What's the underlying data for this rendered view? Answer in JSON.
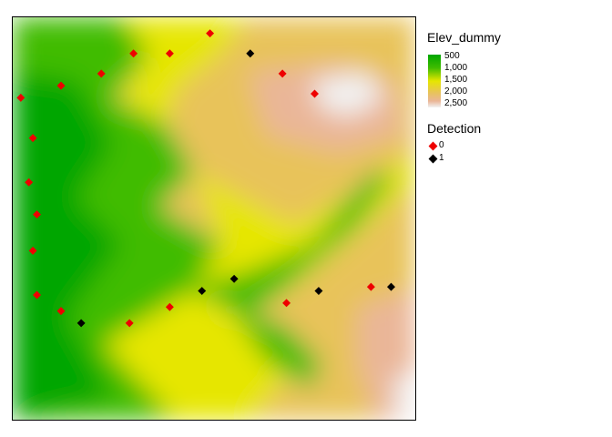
{
  "legend": {
    "elevation_title": "Elev_dummy",
    "elevation_ticks": [
      "500",
      "1,000",
      "1,500",
      "2,000",
      "2,500"
    ],
    "elevation_colors": [
      "#00a600",
      "#3fbc00",
      "#e6e600",
      "#e8c35a",
      "#eab698",
      "#f2f2f2"
    ],
    "detection_title": "Detection",
    "detection_items": [
      {
        "label": "0",
        "color": "#ee0000"
      },
      {
        "label": "1",
        "color": "#000000"
      }
    ]
  },
  "map": {
    "colors": {
      "low": "#00a600",
      "mid": "#e6e600",
      "high": "#f2f2f2"
    },
    "points": [
      {
        "lon": 0.49,
        "lat": 0.96,
        "detection": 0
      },
      {
        "lon": 0.59,
        "lat": 0.91,
        "detection": 1
      },
      {
        "lon": 0.3,
        "lat": 0.91,
        "detection": 0
      },
      {
        "lon": 0.39,
        "lat": 0.91,
        "detection": 0
      },
      {
        "lon": 0.22,
        "lat": 0.86,
        "detection": 0
      },
      {
        "lon": 0.67,
        "lat": 0.86,
        "detection": 0
      },
      {
        "lon": 0.12,
        "lat": 0.83,
        "detection": 0
      },
      {
        "lon": 0.75,
        "lat": 0.81,
        "detection": 0
      },
      {
        "lon": 0.02,
        "lat": 0.8,
        "detection": 0
      },
      {
        "lon": 0.05,
        "lat": 0.7,
        "detection": 0
      },
      {
        "lon": 0.04,
        "lat": 0.59,
        "detection": 0
      },
      {
        "lon": 0.06,
        "lat": 0.51,
        "detection": 0
      },
      {
        "lon": 0.05,
        "lat": 0.42,
        "detection": 0
      },
      {
        "lon": 0.06,
        "lat": 0.31,
        "detection": 0
      },
      {
        "lon": 0.12,
        "lat": 0.27,
        "detection": 0
      },
      {
        "lon": 0.17,
        "lat": 0.24,
        "detection": 1
      },
      {
        "lon": 0.29,
        "lat": 0.24,
        "detection": 0
      },
      {
        "lon": 0.39,
        "lat": 0.28,
        "detection": 0
      },
      {
        "lon": 0.47,
        "lat": 0.32,
        "detection": 1
      },
      {
        "lon": 0.55,
        "lat": 0.35,
        "detection": 1
      },
      {
        "lon": 0.68,
        "lat": 0.29,
        "detection": 0
      },
      {
        "lon": 0.76,
        "lat": 0.32,
        "detection": 1
      },
      {
        "lon": 0.89,
        "lat": 0.33,
        "detection": 0
      },
      {
        "lon": 0.94,
        "lat": 0.33,
        "detection": 1
      }
    ]
  }
}
